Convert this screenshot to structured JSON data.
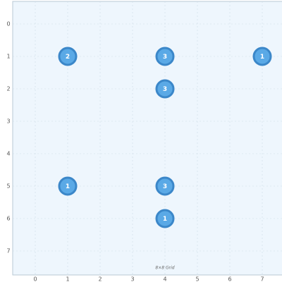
{
  "grid": {
    "caption": "8×8 Grid",
    "columns": [
      0,
      1,
      2,
      3,
      4,
      5,
      6,
      7
    ],
    "rows": [
      0,
      1,
      2,
      3,
      4,
      5,
      6,
      7
    ],
    "nodes": [
      {
        "col": 1,
        "row": 1,
        "label": 2
      },
      {
        "col": 4,
        "row": 1,
        "label": 3
      },
      {
        "col": 7,
        "row": 1,
        "label": 1
      },
      {
        "col": 4,
        "row": 2,
        "label": 3
      },
      {
        "col": 1,
        "row": 5,
        "label": 1
      },
      {
        "col": 4,
        "row": 5,
        "label": 3
      },
      {
        "col": 4,
        "row": 6,
        "label": 1
      }
    ]
  }
}
